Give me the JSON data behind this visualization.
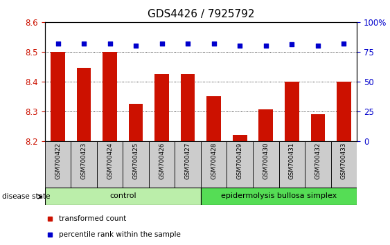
{
  "title": "GDS4426 / 7925792",
  "samples": [
    "GSM700422",
    "GSM700423",
    "GSM700424",
    "GSM700425",
    "GSM700426",
    "GSM700427",
    "GSM700428",
    "GSM700429",
    "GSM700430",
    "GSM700431",
    "GSM700432",
    "GSM700433"
  ],
  "bar_values": [
    8.5,
    8.445,
    8.5,
    8.325,
    8.425,
    8.425,
    8.35,
    8.22,
    8.305,
    8.4,
    8.29,
    8.4
  ],
  "percentile_values": [
    82,
    82,
    82,
    80,
    82,
    82,
    82,
    80,
    80,
    81,
    80,
    82
  ],
  "ylim_left": [
    8.2,
    8.6
  ],
  "ylim_right": [
    0,
    100
  ],
  "yticks_left": [
    8.2,
    8.3,
    8.4,
    8.5,
    8.6
  ],
  "yticks_right": [
    0,
    25,
    50,
    75,
    100
  ],
  "bar_color": "#cc1100",
  "dot_color": "#0000cc",
  "control_count": 6,
  "control_label": "control",
  "disease_label": "epidermolysis bullosa simplex",
  "disease_state_label": "disease state",
  "legend_bar_label": "transformed count",
  "legend_dot_label": "percentile rank within the sample",
  "control_bg": "#bbeeaa",
  "disease_bg": "#55dd55",
  "sample_bg": "#cccccc",
  "title_fontsize": 11,
  "tick_fontsize": 8.5,
  "label_fontsize": 8
}
